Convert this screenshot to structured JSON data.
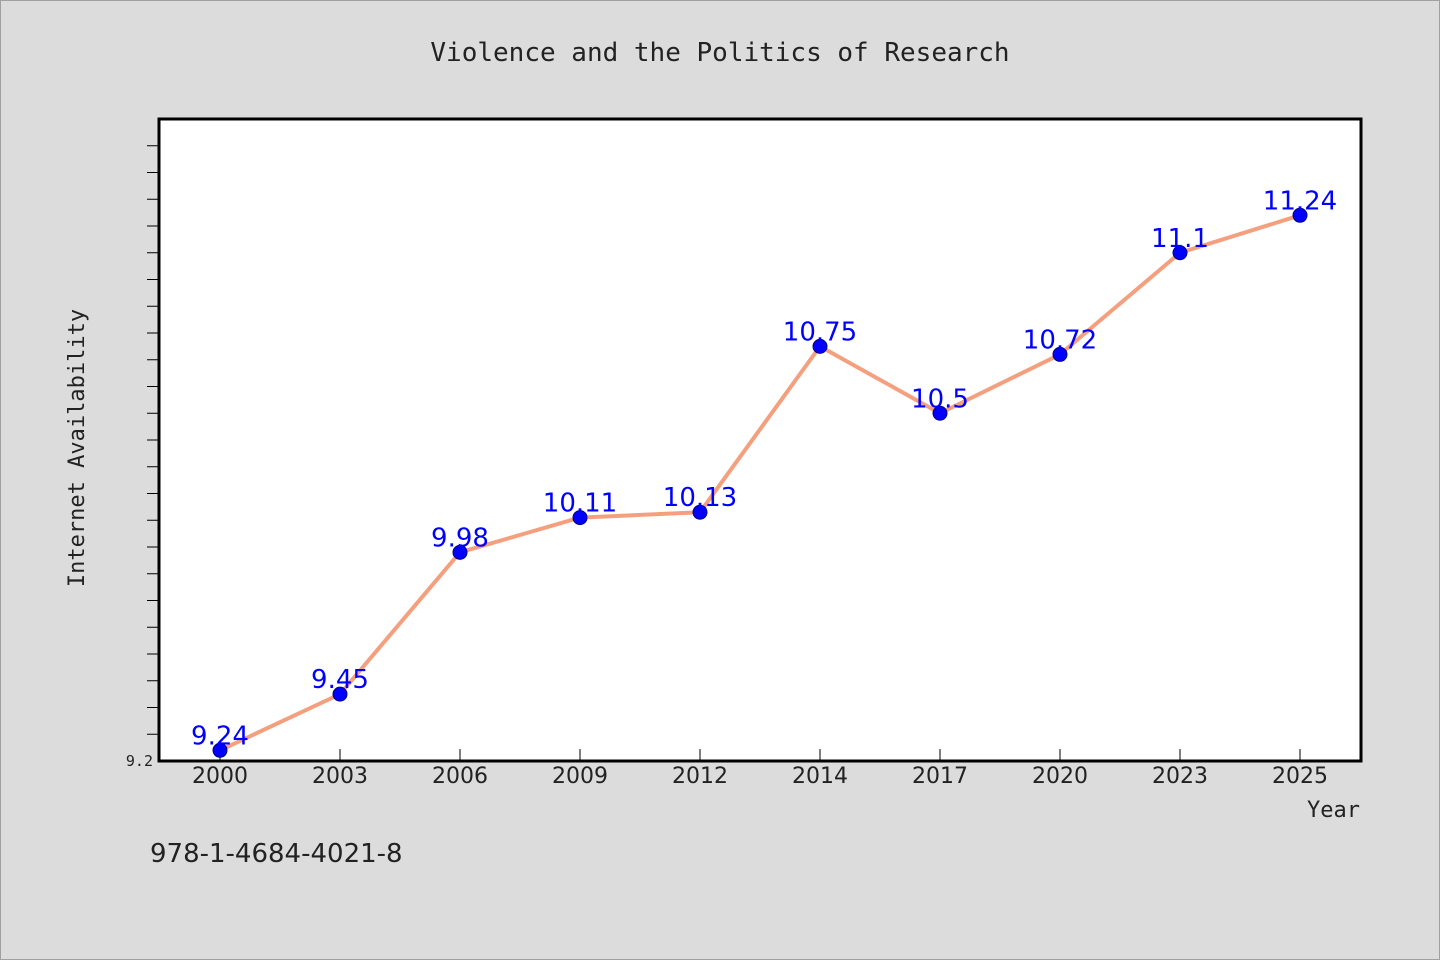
{
  "chart_data": {
    "type": "line",
    "title": "Violence and the Politics of Research",
    "xlabel": "Year",
    "ylabel": "Internet Availability",
    "categories": [
      "2000",
      "2003",
      "2006",
      "2009",
      "2012",
      "2014",
      "2017",
      "2020",
      "2023",
      "2025"
    ],
    "series": [
      {
        "values": [
          9.24,
          9.45,
          9.98,
          10.11,
          10.13,
          10.75,
          10.5,
          10.72,
          11.1,
          11.24
        ]
      }
    ],
    "data_labels": [
      "9.24",
      "9.45",
      "9.98",
      "10.11",
      "10.13",
      "10.75",
      "10.5",
      "10.72",
      "11.1",
      "11.24"
    ],
    "ylim": [
      9.2,
      11.6
    ],
    "yticks_labeled": [
      "9.2"
    ],
    "grid": false,
    "line_color": "#f4a07e",
    "marker_color": "#0000ff",
    "label_color": "#0000ff"
  },
  "footer": {
    "isbn": "978-1-4684-4021-8"
  }
}
